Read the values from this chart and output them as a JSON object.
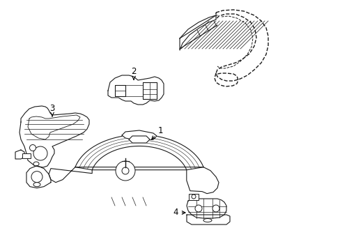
{
  "background_color": "#ffffff",
  "line_color": "#1a1a1a",
  "line_width": 0.8,
  "label_fontsize": 8.5,
  "figsize": [
    4.89,
    3.6
  ],
  "dpi": 100,
  "xlim": [
    0,
    489
  ],
  "ylim": [
    0,
    360
  ]
}
